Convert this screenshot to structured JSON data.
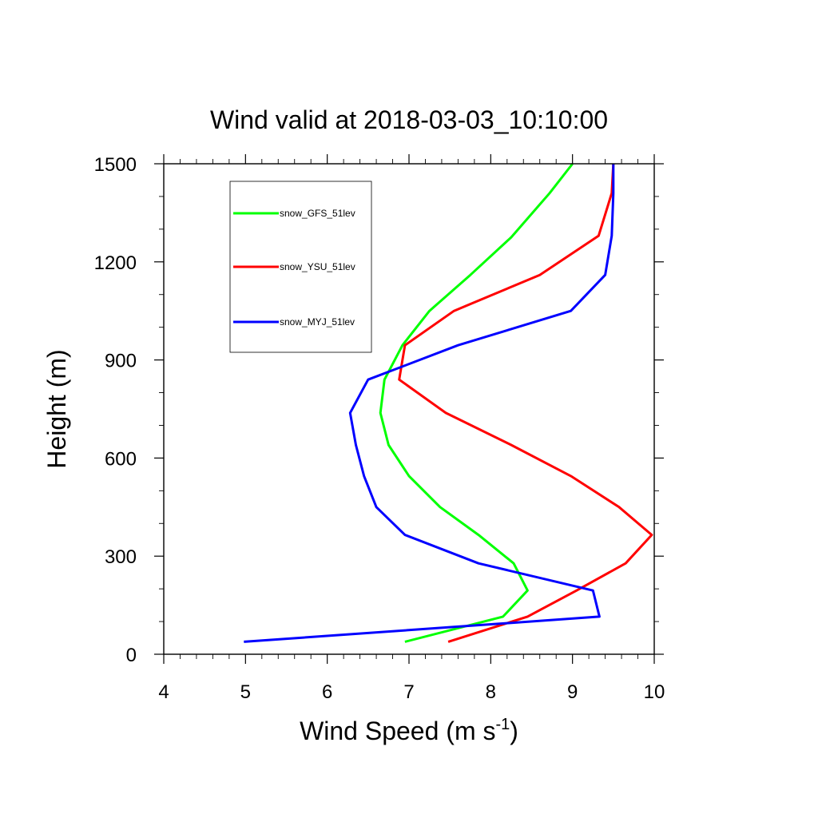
{
  "chart_data": {
    "type": "line",
    "title": "Wind valid at 2018-03-03_10:10:00",
    "xlabel": "Wind Speed (m s",
    "xlabel_sup": "-1",
    "xlabel_end": ")",
    "ylabel": "Height (m)",
    "xlim": [
      4,
      10
    ],
    "ylim": [
      0,
      1500
    ],
    "xticks": [
      "4",
      "5",
      "6",
      "7",
      "8",
      "9",
      "10"
    ],
    "yticks": [
      "0",
      "300",
      "600",
      "900",
      "1200",
      "1500"
    ],
    "legend_position": "top-left",
    "series": [
      {
        "name": "snow_GFS_51lev",
        "color": "#00ff00",
        "points": [
          [
            6.95,
            38
          ],
          [
            8.15,
            115
          ],
          [
            8.45,
            195
          ],
          [
            8.28,
            278
          ],
          [
            7.85,
            365
          ],
          [
            7.38,
            450
          ],
          [
            7.0,
            545
          ],
          [
            6.75,
            640
          ],
          [
            6.65,
            738
          ],
          [
            6.7,
            840
          ],
          [
            6.92,
            945
          ],
          [
            7.25,
            1050
          ],
          [
            7.75,
            1160
          ],
          [
            8.25,
            1275
          ],
          [
            8.72,
            1410
          ],
          [
            9.0,
            1500
          ]
        ]
      },
      {
        "name": "snow_YSU_51lev",
        "color": "#ff0000",
        "points": [
          [
            7.48,
            38
          ],
          [
            8.45,
            115
          ],
          [
            9.05,
            195
          ],
          [
            9.65,
            278
          ],
          [
            9.97,
            365
          ],
          [
            9.57,
            450
          ],
          [
            8.98,
            545
          ],
          [
            8.25,
            640
          ],
          [
            7.45,
            738
          ],
          [
            6.88,
            840
          ],
          [
            6.95,
            945
          ],
          [
            7.55,
            1050
          ],
          [
            8.6,
            1160
          ],
          [
            9.32,
            1280
          ],
          [
            9.48,
            1410
          ],
          [
            9.5,
            1500
          ]
        ]
      },
      {
        "name": "snow_MYJ_51lev",
        "color": "#0000ff",
        "points": [
          [
            4.98,
            38
          ],
          [
            9.33,
            115
          ],
          [
            9.25,
            195
          ],
          [
            7.85,
            278
          ],
          [
            6.95,
            365
          ],
          [
            6.6,
            450
          ],
          [
            6.45,
            545
          ],
          [
            6.35,
            640
          ],
          [
            6.28,
            738
          ],
          [
            6.5,
            840
          ],
          [
            7.6,
            945
          ],
          [
            8.98,
            1050
          ],
          [
            9.4,
            1160
          ],
          [
            9.48,
            1280
          ],
          [
            9.5,
            1410
          ],
          [
            9.5,
            1500
          ]
        ]
      }
    ]
  }
}
